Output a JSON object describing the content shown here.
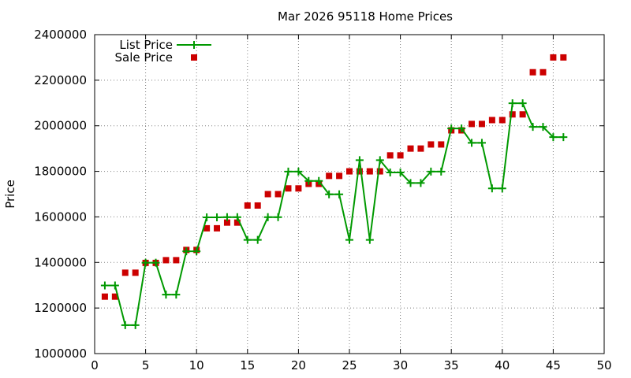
{
  "chart_data": {
    "type": "line",
    "title": "Mar 2026 95118 Home Prices",
    "xlabel": "",
    "ylabel": "Price",
    "xlim": [
      0,
      50
    ],
    "ylim": [
      1000000,
      2400000
    ],
    "x_ticks": [
      0,
      5,
      10,
      15,
      20,
      25,
      30,
      35,
      40,
      45,
      50
    ],
    "y_ticks": [
      1000000,
      1200000,
      1400000,
      1600000,
      1800000,
      2000000,
      2200000,
      2400000
    ],
    "grid": true,
    "legend_position": "top-left",
    "series": [
      {
        "name": "List Price",
        "style": "line+cross-markers",
        "color": "#009900",
        "x": [
          1,
          2,
          3,
          4,
          5,
          6,
          7,
          8,
          9,
          10,
          11,
          12,
          13,
          14,
          15,
          16,
          17,
          18,
          19,
          20,
          21,
          22,
          23,
          24,
          25,
          26,
          27,
          28,
          29,
          30,
          31,
          32,
          33,
          34,
          35,
          36,
          37,
          38,
          39,
          40,
          41,
          42,
          43,
          44,
          45,
          46
        ],
        "values": [
          1299000,
          1299000,
          1125000,
          1125000,
          1399000,
          1399000,
          1259000,
          1259000,
          1449000,
          1449000,
          1598000,
          1598000,
          1599000,
          1599000,
          1499000,
          1499000,
          1599000,
          1599000,
          1799000,
          1799000,
          1758000,
          1758000,
          1699000,
          1699000,
          1499000,
          1849000,
          1499000,
          1849000,
          1795000,
          1795000,
          1749000,
          1749000,
          1799000,
          1799000,
          1988000,
          1988000,
          1925000,
          1925000,
          1725000,
          1725000,
          2099000,
          2099000,
          1995000,
          1995000,
          1950000,
          1950000
        ]
      },
      {
        "name": "Sale Price",
        "style": "square-points",
        "color": "#cc0000",
        "x": [
          1,
          2,
          3,
          4,
          5,
          6,
          7,
          8,
          9,
          10,
          11,
          12,
          13,
          14,
          15,
          16,
          17,
          18,
          19,
          20,
          21,
          22,
          23,
          24,
          25,
          26,
          27,
          28,
          29,
          30,
          31,
          32,
          33,
          34,
          35,
          36,
          37,
          38,
          39,
          40,
          41,
          42,
          43,
          44,
          45,
          46
        ],
        "values": [
          1250000,
          1250000,
          1355000,
          1355000,
          1398000,
          1398000,
          1410000,
          1410000,
          1455000,
          1455000,
          1550000,
          1550000,
          1575000,
          1575000,
          1650000,
          1650000,
          1700000,
          1700000,
          1725000,
          1725000,
          1745000,
          1745000,
          1780000,
          1780000,
          1800000,
          1800000,
          1800000,
          1800000,
          1870000,
          1870000,
          1900000,
          1900000,
          1918000,
          1918000,
          1980000,
          1980000,
          2008000,
          2008000,
          2025000,
          2025000,
          2050000,
          2050000,
          2235000,
          2235000,
          2300000,
          2300000
        ]
      }
    ]
  }
}
